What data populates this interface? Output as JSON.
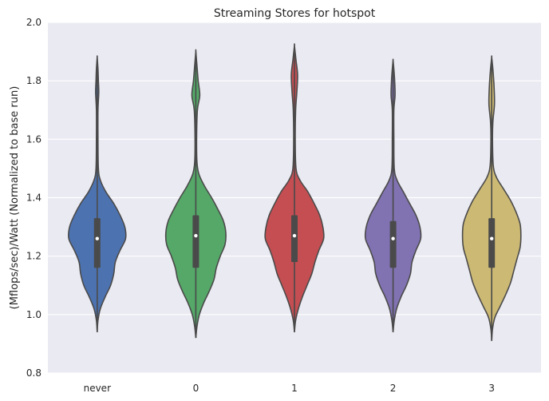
{
  "chart_data": {
    "type": "violin",
    "title": "Streaming Stores for hotspot",
    "xlabel": "",
    "ylabel": "(Mflops/sec)/Watt (Normalized to base run)",
    "ylim": [
      0.8,
      2.0
    ],
    "yticks": [
      "0.8",
      "1.0",
      "1.2",
      "1.4",
      "1.6",
      "1.8",
      "2.0"
    ],
    "grid": true,
    "categories": [
      "never",
      "0",
      "1",
      "2",
      "3"
    ],
    "colors": [
      "#4c72b0",
      "#55a868",
      "#c44e52",
      "#8172b2",
      "#ccb974"
    ],
    "series": [
      {
        "category": "never",
        "min": 0.94,
        "q1": 1.16,
        "median": 1.26,
        "q3": 1.33,
        "max": 1.88,
        "profile": [
          [
            0.94,
            0.0
          ],
          [
            0.98,
            0.02
          ],
          [
            1.02,
            0.08
          ],
          [
            1.06,
            0.2
          ],
          [
            1.1,
            0.34
          ],
          [
            1.14,
            0.42
          ],
          [
            1.18,
            0.46
          ],
          [
            1.22,
            0.58
          ],
          [
            1.26,
            0.72
          ],
          [
            1.3,
            0.7
          ],
          [
            1.34,
            0.58
          ],
          [
            1.38,
            0.42
          ],
          [
            1.42,
            0.22
          ],
          [
            1.46,
            0.08
          ],
          [
            1.5,
            0.03
          ],
          [
            1.6,
            0.02
          ],
          [
            1.7,
            0.02
          ],
          [
            1.76,
            0.04
          ],
          [
            1.8,
            0.03
          ],
          [
            1.84,
            0.02
          ],
          [
            1.88,
            0.0
          ]
        ]
      },
      {
        "category": "0",
        "min": 0.92,
        "q1": 1.16,
        "median": 1.27,
        "q3": 1.34,
        "max": 1.9,
        "profile": [
          [
            0.92,
            0.0
          ],
          [
            0.96,
            0.03
          ],
          [
            1.0,
            0.09
          ],
          [
            1.04,
            0.2
          ],
          [
            1.08,
            0.34
          ],
          [
            1.12,
            0.46
          ],
          [
            1.16,
            0.52
          ],
          [
            1.2,
            0.62
          ],
          [
            1.24,
            0.74
          ],
          [
            1.28,
            0.76
          ],
          [
            1.32,
            0.7
          ],
          [
            1.36,
            0.56
          ],
          [
            1.4,
            0.4
          ],
          [
            1.44,
            0.22
          ],
          [
            1.48,
            0.08
          ],
          [
            1.52,
            0.03
          ],
          [
            1.6,
            0.02
          ],
          [
            1.7,
            0.04
          ],
          [
            1.75,
            0.1
          ],
          [
            1.8,
            0.06
          ],
          [
            1.85,
            0.03
          ],
          [
            1.9,
            0.0
          ]
        ]
      },
      {
        "category": "1",
        "min": 0.94,
        "q1": 1.18,
        "median": 1.27,
        "q3": 1.34,
        "max": 1.92,
        "profile": [
          [
            0.94,
            0.0
          ],
          [
            0.98,
            0.03
          ],
          [
            1.02,
            0.1
          ],
          [
            1.06,
            0.2
          ],
          [
            1.1,
            0.32
          ],
          [
            1.14,
            0.44
          ],
          [
            1.18,
            0.52
          ],
          [
            1.22,
            0.62
          ],
          [
            1.26,
            0.74
          ],
          [
            1.3,
            0.72
          ],
          [
            1.34,
            0.64
          ],
          [
            1.38,
            0.5
          ],
          [
            1.42,
            0.34
          ],
          [
            1.46,
            0.14
          ],
          [
            1.5,
            0.04
          ],
          [
            1.6,
            0.02
          ],
          [
            1.7,
            0.03
          ],
          [
            1.76,
            0.06
          ],
          [
            1.82,
            0.08
          ],
          [
            1.87,
            0.04
          ],
          [
            1.92,
            0.0
          ]
        ]
      },
      {
        "category": "2",
        "min": 0.94,
        "q1": 1.16,
        "median": 1.26,
        "q3": 1.32,
        "max": 1.87,
        "profile": [
          [
            0.94,
            0.0
          ],
          [
            0.98,
            0.03
          ],
          [
            1.02,
            0.09
          ],
          [
            1.06,
            0.2
          ],
          [
            1.1,
            0.34
          ],
          [
            1.14,
            0.44
          ],
          [
            1.18,
            0.48
          ],
          [
            1.22,
            0.58
          ],
          [
            1.26,
            0.7
          ],
          [
            1.3,
            0.68
          ],
          [
            1.34,
            0.58
          ],
          [
            1.38,
            0.42
          ],
          [
            1.42,
            0.26
          ],
          [
            1.46,
            0.1
          ],
          [
            1.5,
            0.03
          ],
          [
            1.6,
            0.02
          ],
          [
            1.7,
            0.02
          ],
          [
            1.75,
            0.05
          ],
          [
            1.8,
            0.04
          ],
          [
            1.84,
            0.02
          ],
          [
            1.87,
            0.0
          ]
        ]
      },
      {
        "category": "3",
        "min": 0.91,
        "q1": 1.16,
        "median": 1.26,
        "q3": 1.33,
        "max": 1.88,
        "profile": [
          [
            0.91,
            0.0
          ],
          [
            0.95,
            0.02
          ],
          [
            0.99,
            0.08
          ],
          [
            1.03,
            0.22
          ],
          [
            1.07,
            0.36
          ],
          [
            1.11,
            0.48
          ],
          [
            1.15,
            0.56
          ],
          [
            1.19,
            0.64
          ],
          [
            1.23,
            0.72
          ],
          [
            1.27,
            0.74
          ],
          [
            1.31,
            0.72
          ],
          [
            1.35,
            0.62
          ],
          [
            1.39,
            0.48
          ],
          [
            1.43,
            0.3
          ],
          [
            1.47,
            0.12
          ],
          [
            1.51,
            0.04
          ],
          [
            1.6,
            0.02
          ],
          [
            1.66,
            0.03
          ],
          [
            1.72,
            0.07
          ],
          [
            1.78,
            0.06
          ],
          [
            1.84,
            0.03
          ],
          [
            1.88,
            0.0
          ]
        ]
      }
    ]
  }
}
